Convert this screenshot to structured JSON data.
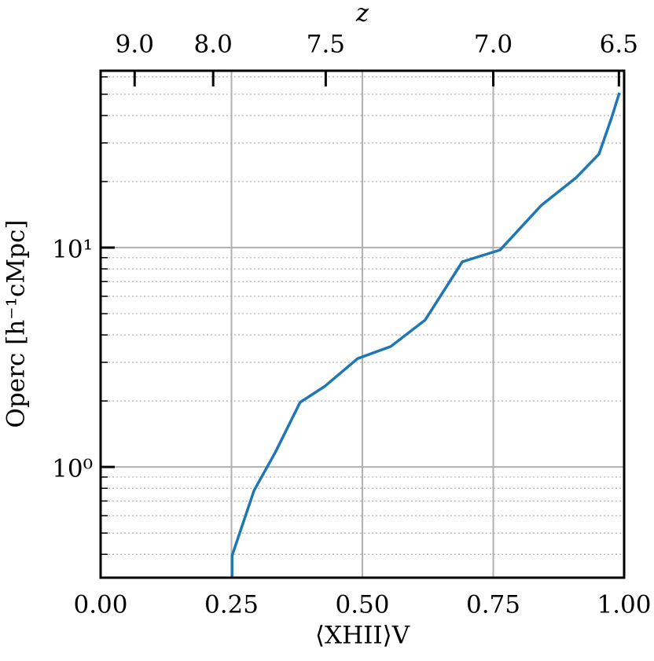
{
  "chart_data": {
    "type": "line",
    "xlabel": "⟨XHII⟩V",
    "ylabel": "Operc [h⁻¹cMpc]",
    "x2label": "z",
    "series": [
      {
        "color": "#1f77b4",
        "x": [
          0.251,
          0.251,
          0.293,
          0.334,
          0.381,
          0.429,
          0.491,
          0.554,
          0.62,
          0.691,
          0.763,
          0.842,
          0.908,
          0.952,
          0.976,
          0.991
        ],
        "values": [
          0.313,
          0.394,
          0.78,
          1.17,
          1.97,
          2.34,
          3.12,
          3.54,
          4.68,
          8.62,
          9.76,
          15.6,
          20.8,
          26.7,
          39.0,
          50.8
        ]
      }
    ],
    "xlim": [
      0,
      1
    ],
    "xticks": [
      {
        "value": 0,
        "label": "0.00"
      },
      0.25,
      {
        "value": 0.5,
        "label": "0.50"
      },
      0.75,
      {
        "value": 1,
        "label": "1.00"
      }
    ],
    "x2ticks": [
      {
        "value": 0.065,
        "label": "9.0"
      },
      {
        "value": 0.215,
        "label": "8.0"
      },
      {
        "value": 0.43,
        "label": "7.5"
      },
      {
        "value": 0.75,
        "label": "7.0"
      },
      {
        "value": 0.99,
        "label": "6.5"
      }
    ],
    "ylim": [
      0.313,
      64
    ],
    "yscale": "log",
    "yticks": [
      {
        "value": 1,
        "label": "10⁰"
      },
      {
        "value": 10,
        "label": "10¹"
      }
    ],
    "yminorticks": [
      0.4,
      0.5,
      0.6,
      0.7,
      0.8,
      0.9,
      2,
      3,
      4,
      5,
      6,
      7,
      8,
      9,
      20,
      30,
      40,
      50,
      60
    ],
    "grid": true
  }
}
